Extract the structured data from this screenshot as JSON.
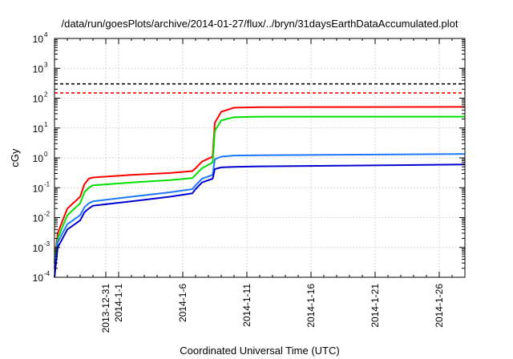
{
  "chart_data": {
    "type": "line",
    "title": "/data/run/goesPlots/archive/2014-01-27/flux/../bryn/31daysEarthDataAccumulated.plot",
    "xlabel": "Coordinated Universal Time (UTC)",
    "ylabel": "cGy",
    "yscale": "log",
    "ylim": [
      0.0001,
      10000
    ],
    "xlim": [
      "2013-12-27",
      "2014-01-28"
    ],
    "grid": true,
    "x_ticks": [
      "2013-12-31",
      "2014-1-1",
      "2014-1-6",
      "2014-1-11",
      "2014-1-16",
      "2014-1-21",
      "2014-1-26"
    ],
    "y_ticks": [
      {
        "value": 0.0001,
        "base": "10",
        "exp": "-4"
      },
      {
        "value": 0.001,
        "base": "10",
        "exp": "-3"
      },
      {
        "value": 0.01,
        "base": "10",
        "exp": "-2"
      },
      {
        "value": 0.1,
        "base": "10",
        "exp": "-1"
      },
      {
        "value": 1,
        "base": "10",
        "exp": "0"
      },
      {
        "value": 10,
        "base": "10",
        "exp": "1"
      },
      {
        "value": 100,
        "base": "10",
        "exp": "2"
      },
      {
        "value": 1000,
        "base": "10",
        "exp": "3"
      },
      {
        "value": 10000,
        "base": "10",
        "exp": "4"
      }
    ],
    "thresholds": [
      {
        "value": 300,
        "color": "#000000",
        "dash": true
      },
      {
        "value": 150,
        "color": "#ff0000",
        "dash": true
      }
    ],
    "series": [
      {
        "color": "#ff0000",
        "x": [
          "2013-12-27",
          "2013-12-27 06:00",
          "2013-12-28",
          "2013-12-29",
          "2013-12-29 08:00",
          "2013-12-29 16:00",
          "2013-12-30",
          "2014-01-02",
          "2014-01-05",
          "2014-01-06 18:00",
          "2014-01-07",
          "2014-01-07 12:00",
          "2014-01-08 08:00",
          "2014-01-08 12:00",
          "2014-01-09",
          "2014-01-10",
          "2014-01-12",
          "2014-01-28"
        ],
        "y": [
          0.0003,
          0.003,
          0.02,
          0.05,
          0.13,
          0.2,
          0.22,
          0.27,
          0.31,
          0.36,
          0.45,
          0.75,
          1.1,
          15,
          35,
          48,
          50,
          51
        ]
      },
      {
        "color": "#00e000",
        "x": [
          "2013-12-27",
          "2013-12-27 06:00",
          "2013-12-28",
          "2013-12-29",
          "2013-12-29 08:00",
          "2013-12-29 16:00",
          "2013-12-30",
          "2014-01-02",
          "2014-01-05",
          "2014-01-06 18:00",
          "2014-01-07",
          "2014-01-07 12:00",
          "2014-01-08 08:00",
          "2014-01-08 12:00",
          "2014-01-09",
          "2014-01-10",
          "2014-01-12",
          "2014-01-28"
        ],
        "y": [
          0.0003,
          0.002,
          0.012,
          0.03,
          0.07,
          0.1,
          0.12,
          0.15,
          0.18,
          0.21,
          0.27,
          0.45,
          0.7,
          8,
          18,
          23,
          24,
          24
        ]
      },
      {
        "color": "#1e78ff",
        "x": [
          "2013-12-27",
          "2013-12-27 06:00",
          "2013-12-28",
          "2013-12-29",
          "2013-12-29 08:00",
          "2013-12-29 16:00",
          "2013-12-30",
          "2014-01-02",
          "2014-01-05",
          "2014-01-06 18:00",
          "2014-01-07",
          "2014-01-07 12:00",
          "2014-01-08 08:00",
          "2014-01-08 12:00",
          "2014-01-09",
          "2014-01-10",
          "2014-01-12",
          "2014-01-28"
        ],
        "y": [
          0.0002,
          0.0015,
          0.006,
          0.012,
          0.022,
          0.03,
          0.035,
          0.05,
          0.07,
          0.09,
          0.12,
          0.2,
          0.27,
          0.9,
          1.1,
          1.2,
          1.22,
          1.35
        ]
      },
      {
        "color": "#0000d0",
        "x": [
          "2013-12-27",
          "2013-12-27 06:00",
          "2013-12-28",
          "2013-12-29",
          "2013-12-29 08:00",
          "2013-12-29 16:00",
          "2013-12-30",
          "2014-01-02",
          "2014-01-05",
          "2014-01-06 18:00",
          "2014-01-07",
          "2014-01-07 12:00",
          "2014-01-08 08:00",
          "2014-01-08 12:00",
          "2014-01-09",
          "2014-01-10",
          "2014-01-12",
          "2014-01-28"
        ],
        "y": [
          0.0001,
          0.001,
          0.004,
          0.008,
          0.015,
          0.02,
          0.025,
          0.035,
          0.05,
          0.065,
          0.09,
          0.15,
          0.2,
          0.42,
          0.48,
          0.5,
          0.52,
          0.6
        ]
      }
    ]
  }
}
